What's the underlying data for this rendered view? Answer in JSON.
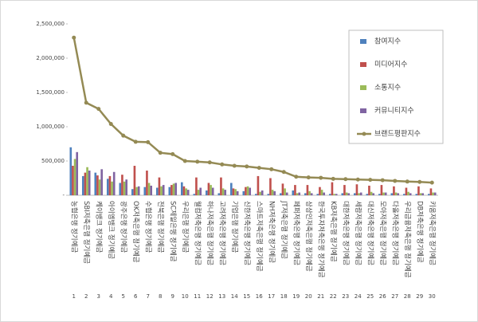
{
  "chart_data": {
    "type": "bar",
    "ranks": [
      1,
      2,
      3,
      4,
      5,
      6,
      7,
      8,
      9,
      10,
      11,
      12,
      13,
      14,
      15,
      16,
      17,
      18,
      19,
      20,
      21,
      22,
      23,
      24,
      25,
      26,
      27,
      28,
      29,
      30
    ],
    "categories": [
      "농협은행 정기예금",
      "SBI저축은행 정기예금",
      "케이뱅크 정기예금",
      "아이엠뱅크 정기예금",
      "광주은행 정기예금",
      "OK저축은행 정기예금",
      "수협은행 정기예금",
      "전북은행 정기예금",
      "SC제일은행 정기예금",
      "우리은행 정기예금",
      "웰컴저축은행 정기예금",
      "하나저축은행 정기예금",
      "고려저축은행 정기예금",
      "기업은행 정기예금",
      "신한저축은행 정기예금",
      "스마트저축은행 정기예금",
      "NH저축은행 정기예금",
      "JT저축은행 정기예금",
      "페퍼저축은행 정기예금",
      "상상인저축은행 정기예금",
      "한국투자저축은행 정기예금",
      "KB저축은행 정기예금",
      "대한저축은행 정기예금",
      "세람저축은행 정기예금",
      "대신저축은행 정기예금",
      "모아저축은행 정기예금",
      "다올저축은행 정기예금",
      "우리금융저축은행 정기예금",
      "DB저축은행 정기예금",
      "키움저축은행 정기예금"
    ],
    "series": [
      {
        "name": "참여지수",
        "type": "bar",
        "color": "#4f81bd",
        "values": [
          700000,
          280000,
          330000,
          240000,
          180000,
          90000,
          120000,
          110000,
          120000,
          190000,
          20000,
          70000,
          30000,
          180000,
          60000,
          20000,
          20000,
          30000,
          70000,
          30000,
          20000,
          20000,
          30000,
          30000,
          20000,
          20000,
          30000,
          20000,
          20000,
          20000
        ]
      },
      {
        "name": "미디어지수",
        "type": "bar",
        "color": "#c0504d",
        "values": [
          430000,
          330000,
          290000,
          280000,
          300000,
          430000,
          360000,
          260000,
          150000,
          130000,
          260000,
          180000,
          260000,
          100000,
          120000,
          280000,
          250000,
          170000,
          150000,
          150000,
          120000,
          190000,
          150000,
          160000,
          140000,
          150000,
          130000,
          110000,
          130000,
          100000
        ]
      },
      {
        "name": "소통지수",
        "type": "bar",
        "color": "#9bbb59",
        "values": [
          530000,
          410000,
          230000,
          200000,
          200000,
          120000,
          180000,
          130000,
          170000,
          100000,
          80000,
          150000,
          100000,
          90000,
          130000,
          50000,
          80000,
          100000,
          30000,
          60000,
          80000,
          20000,
          40000,
          30000,
          50000,
          40000,
          40000,
          50000,
          30000,
          40000
        ]
      },
      {
        "name": "커뮤니티지수",
        "type": "bar",
        "color": "#8064a2",
        "values": [
          630000,
          360000,
          380000,
          340000,
          230000,
          130000,
          140000,
          150000,
          180000,
          80000,
          110000,
          110000,
          80000,
          60000,
          110000,
          70000,
          60000,
          40000,
          40000,
          30000,
          40000,
          20000,
          30000,
          40000,
          30000,
          40000,
          30000,
          30000,
          30000,
          40000
        ]
      },
      {
        "name": "브랜드평판지수",
        "type": "line",
        "color": "#948a54",
        "values": [
          2300000,
          1350000,
          1260000,
          1040000,
          870000,
          780000,
          775000,
          620000,
          600000,
          500000,
          490000,
          480000,
          450000,
          430000,
          420000,
          400000,
          380000,
          340000,
          270000,
          260000,
          255000,
          240000,
          235000,
          230000,
          225000,
          220000,
          210000,
          200000,
          195000,
          185000
        ]
      }
    ],
    "ylim": [
      0,
      2500000
    ],
    "yticks": [
      {
        "value": 0,
        "label": "-"
      },
      {
        "value": 500000,
        "label": "500,000"
      },
      {
        "value": 1000000,
        "label": "1,000,000"
      },
      {
        "value": 1500000,
        "label": "1,500,000"
      },
      {
        "value": 2000000,
        "label": "2,000,000"
      },
      {
        "value": 2500000,
        "label": "2,500,000"
      }
    ],
    "legend": "top-right"
  }
}
